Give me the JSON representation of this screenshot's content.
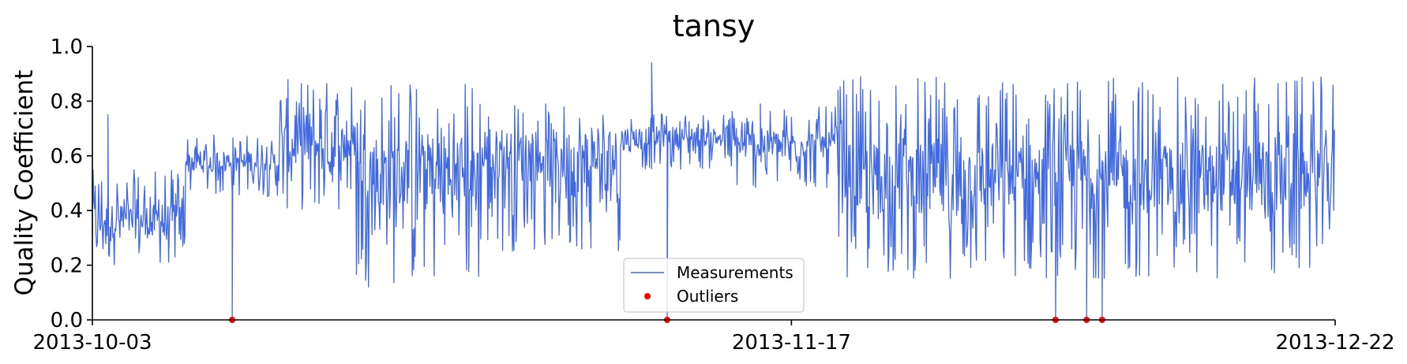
{
  "chart_data": {
    "type": "line",
    "title": "tansy",
    "xlabel": "",
    "ylabel": "Quality Coefficient",
    "x_ticks": [
      "2013-10-03",
      "2013-11-17",
      "2013-12-22"
    ],
    "x_range": [
      "2013-10-03",
      "2013-12-22"
    ],
    "ylim": [
      0.0,
      1.0
    ],
    "y_ticks": [
      "0.0",
      "0.2",
      "0.4",
      "0.6",
      "0.8",
      "1.0"
    ],
    "grid": false,
    "legend": {
      "placement": "bottom-center",
      "entries": [
        "Measurements",
        "Outliers"
      ]
    },
    "colors": {
      "measurements": "#4169e1",
      "outliers": "#ff0000"
    },
    "series": [
      {
        "name": "Measurements",
        "style": "line",
        "segments": [
          {
            "start": "2013-10-03",
            "end": "2013-10-09",
            "low": 0.2,
            "high": 0.55,
            "center": 0.36
          },
          {
            "start": "2013-10-09",
            "end": "2013-10-15",
            "low": 0.45,
            "high": 0.68,
            "center": 0.58
          },
          {
            "start": "2013-10-15",
            "end": "2013-10-20",
            "low": 0.4,
            "high": 0.88,
            "center": 0.64
          },
          {
            "start": "2013-10-20",
            "end": "2013-10-28",
            "low": 0.12,
            "high": 0.89,
            "center": 0.55
          },
          {
            "start": "2013-10-28",
            "end": "2013-11-06",
            "low": 0.25,
            "high": 0.8,
            "center": 0.6
          },
          {
            "start": "2013-11-06",
            "end": "2013-11-13",
            "low": 0.55,
            "high": 0.76,
            "center": 0.67
          },
          {
            "start": "2013-11-13",
            "end": "2013-11-20",
            "low": 0.48,
            "high": 0.78,
            "center": 0.64
          },
          {
            "start": "2013-11-20",
            "end": "2013-12-22",
            "low": 0.15,
            "high": 0.89,
            "center": 0.52
          }
        ],
        "spikes": [
          {
            "x": "2013-10-03",
            "y": 0.53
          },
          {
            "x": "2013-10-04",
            "y": 0.75
          },
          {
            "x": "2013-11-08",
            "y": 0.94
          },
          {
            "x": "2013-11-15",
            "y": 0.79
          },
          {
            "x": "2013-11-20",
            "y": 0.84
          },
          {
            "x": "2013-12-09",
            "y": 0.8
          }
        ]
      },
      {
        "name": "Outliers",
        "style": "points",
        "points": [
          {
            "x": "2013-10-12",
            "y": 0.0
          },
          {
            "x": "2013-11-09",
            "y": 0.0
          },
          {
            "x": "2013-12-04",
            "y": 0.0
          },
          {
            "x": "2013-12-06",
            "y": 0.0
          },
          {
            "x": "2013-12-07",
            "y": 0.0
          }
        ]
      }
    ]
  }
}
